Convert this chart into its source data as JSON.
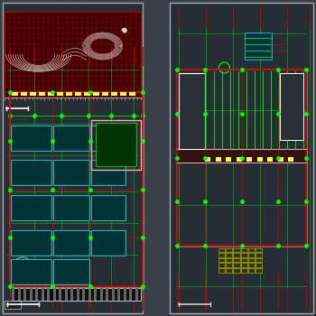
{
  "bg_color": "#2d3540",
  "panel_color": "#252d35",
  "panel_border": "#aaaaaa",
  "fig_bg": "#3a4048",
  "colors": {
    "red": "#cc0000",
    "bright_red": "#ff3333",
    "cyan": "#00cccc",
    "bright_cyan": "#00ffff",
    "green": "#00bb00",
    "bright_green": "#00ff00",
    "yellow": "#cccc00",
    "bright_yellow": "#ffff44",
    "white": "#ffffff",
    "pink": "#ffaaaa",
    "salmon": "#cc8888",
    "gray": "#888888",
    "light_gray": "#cccccc",
    "dark_red_fill": "#3a0000",
    "dark_teal": "#003333"
  }
}
